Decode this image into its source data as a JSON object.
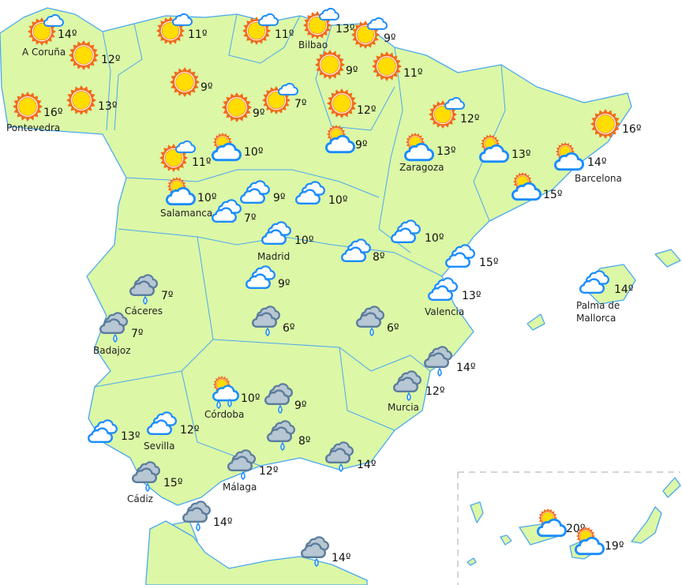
{
  "colors": {
    "land": "#dcf7a6",
    "border": "#4aa8f0",
    "sun_rays": "#f26b1d",
    "sun_core": "#ffdd00",
    "cloud_stroke": "#1a8cff",
    "rain_cloud_fill": "#b7c7d3",
    "rain_cloud_stroke": "#5b7c9c"
  },
  "stations": [
    {
      "label": "A Coruña",
      "temp": "14º",
      "icon": "sun-cloud"
    },
    {
      "label": "",
      "temp": "12º",
      "icon": "sun"
    },
    {
      "label": "Pontevedra",
      "temp": "16º",
      "icon": "sun"
    },
    {
      "label": "",
      "temp": "13º",
      "icon": "sun"
    },
    {
      "label": "",
      "temp": "11º",
      "icon": "sun-cloud"
    },
    {
      "label": "",
      "temp": "11º",
      "icon": "sun-cloud"
    },
    {
      "label": "Bilbao",
      "temp": "13º",
      "icon": "sun-cloud"
    },
    {
      "label": "",
      "temp": "9º",
      "icon": "sun-cloud"
    },
    {
      "label": "",
      "temp": "9º",
      "icon": "sun"
    },
    {
      "label": "",
      "temp": "11º",
      "icon": "sun"
    },
    {
      "label": "",
      "temp": "9º",
      "icon": "sun"
    },
    {
      "label": "",
      "temp": "9º",
      "icon": "sun"
    },
    {
      "label": "",
      "temp": "7º",
      "icon": "sun-cloud"
    },
    {
      "label": "",
      "temp": "12º",
      "icon": "sun"
    },
    {
      "label": "",
      "temp": "12º",
      "icon": "sun-cloud"
    },
    {
      "label": "",
      "temp": "16º",
      "icon": "sun"
    },
    {
      "label": "",
      "temp": "11º",
      "icon": "sun-cloud"
    },
    {
      "label": "",
      "temp": "10º",
      "icon": "cloud-sun"
    },
    {
      "label": "",
      "temp": "9º",
      "icon": "cloud-sun"
    },
    {
      "label": "Zaragoza",
      "temp": "13º",
      "icon": "cloud-sun"
    },
    {
      "label": "",
      "temp": "13º",
      "icon": "cloud-sun"
    },
    {
      "label": "Barcelona",
      "temp": "14º",
      "icon": "cloud-sun"
    },
    {
      "label": "",
      "temp": "15º",
      "icon": "cloud-sun"
    },
    {
      "label": "Salamanca",
      "temp": "10º",
      "icon": "cloud-sun"
    },
    {
      "label": "",
      "temp": "9º",
      "icon": "cloud"
    },
    {
      "label": "",
      "temp": "10º",
      "icon": "cloud"
    },
    {
      "label": "",
      "temp": "7º",
      "icon": "cloud"
    },
    {
      "label": "Madrid",
      "temp": "10º",
      "icon": "cloud"
    },
    {
      "label": "",
      "temp": "10º",
      "icon": "cloud"
    },
    {
      "label": "",
      "temp": "8º",
      "icon": "cloud"
    },
    {
      "label": "",
      "temp": "15º",
      "icon": "cloud"
    },
    {
      "label": "",
      "temp": "9º",
      "icon": "cloud"
    },
    {
      "label": "Valencia",
      "temp": "13º",
      "icon": "cloud"
    },
    {
      "label": "Cáceres",
      "temp": "7º",
      "icon": "rain"
    },
    {
      "label": "Badajoz",
      "temp": "7º",
      "icon": "rain"
    },
    {
      "label": "Palma de Mallorca",
      "temp": "14º",
      "icon": "cloud"
    },
    {
      "label": "",
      "temp": "6º",
      "icon": "rain"
    },
    {
      "label": "",
      "temp": "6º",
      "icon": "rain"
    },
    {
      "label": "",
      "temp": "14º",
      "icon": "rain"
    },
    {
      "label": "Murcia",
      "temp": "12º",
      "icon": "rain"
    },
    {
      "label": "Córdoba",
      "temp": "10º",
      "icon": "rain-sun"
    },
    {
      "label": "",
      "temp": "9º",
      "icon": "rain"
    },
    {
      "label": "",
      "temp": "8º",
      "icon": "rain"
    },
    {
      "label": "Sevilla",
      "temp": "12º",
      "icon": "cloud"
    },
    {
      "label": "",
      "temp": "13º",
      "icon": "cloud"
    },
    {
      "label": "Málaga",
      "temp": "12º",
      "icon": "rain"
    },
    {
      "label": "",
      "temp": "14º",
      "icon": "rain"
    },
    {
      "label": "Cádiz",
      "temp": "15º",
      "icon": "rain"
    },
    {
      "label": "",
      "temp": "14º",
      "icon": "rain"
    },
    {
      "label": "",
      "temp": "14º",
      "icon": "rain"
    },
    {
      "label": "",
      "temp": "20º",
      "icon": "cloud-sun"
    },
    {
      "label": "",
      "temp": "19º",
      "icon": "cloud-sun"
    }
  ]
}
